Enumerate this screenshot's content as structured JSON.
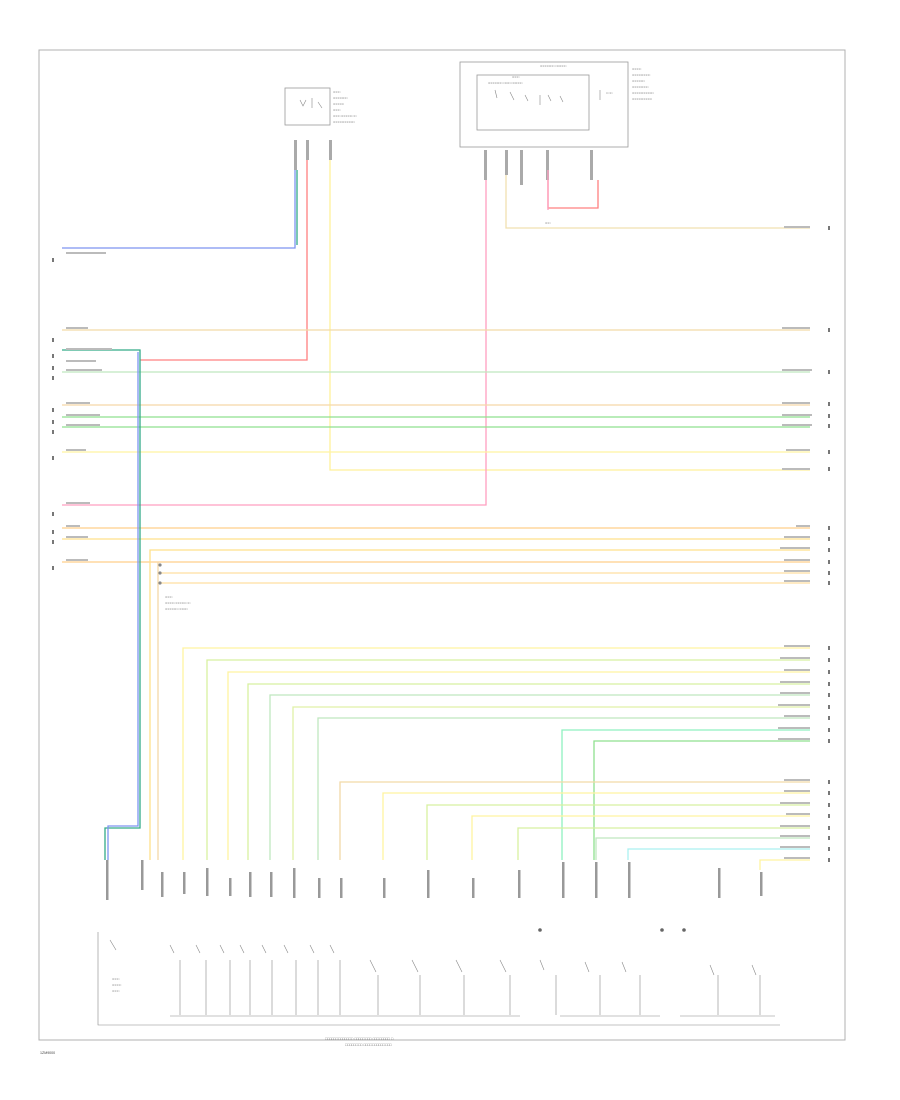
{
  "diagram": {
    "footer_code": "1ZM9000",
    "border_color": "#b0b0b0",
    "wire_colors": {
      "blue": "#7d95f0",
      "green": "#8fe08f",
      "yellow": "#fff3a0",
      "orange": "#ffcf8a",
      "tan": "#f2d9a8",
      "pink": "#ff9fc0",
      "red": "#ff8080",
      "cyan": "#8ff0f0",
      "teal": "#33aa88"
    }
  }
}
